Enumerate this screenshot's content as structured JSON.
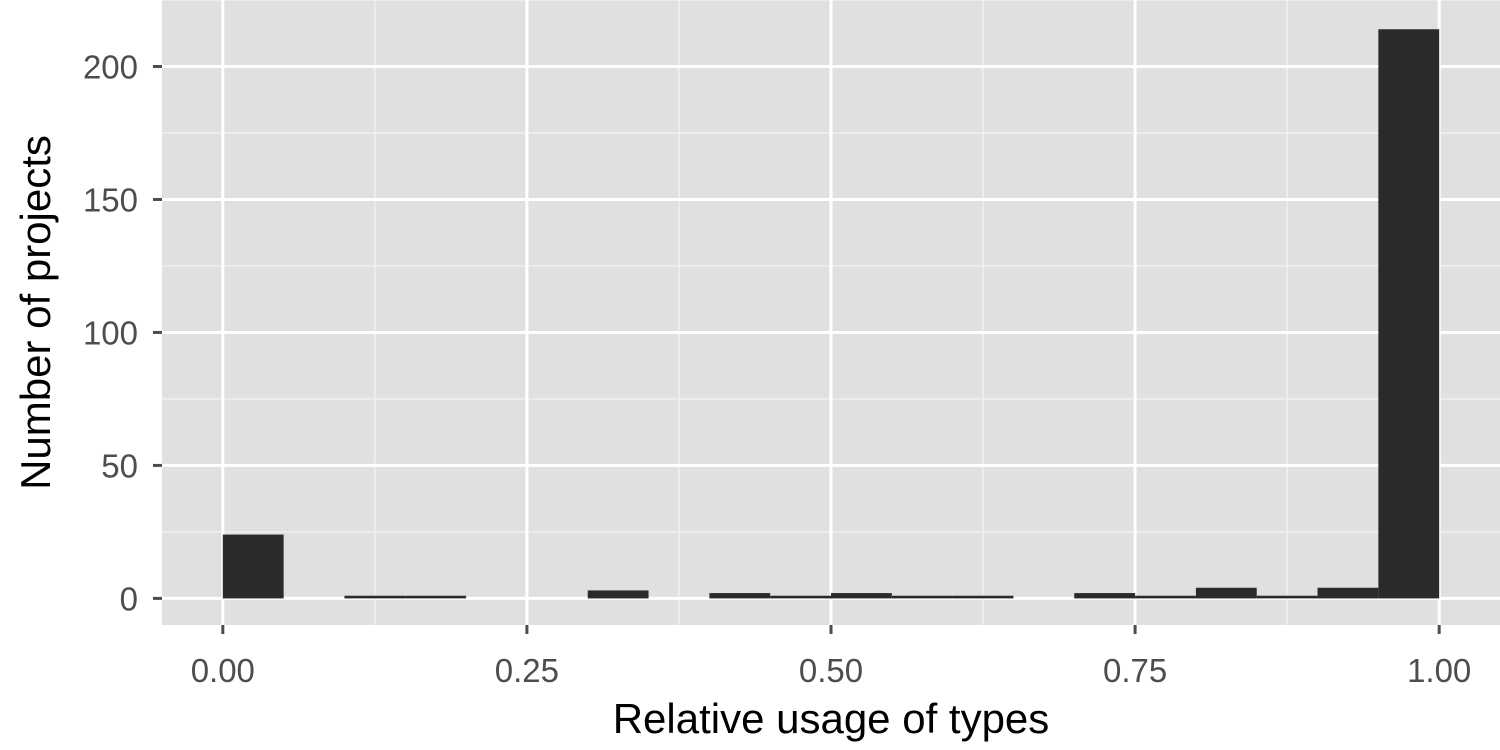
{
  "chart_data": {
    "type": "bar",
    "subtype": "histogram",
    "title": "",
    "xlabel": "Relative usage of types",
    "ylabel": "Number of projects",
    "bin_width": 0.05,
    "bins": [
      {
        "start": 0.0,
        "count": 24
      },
      {
        "start": 0.05,
        "count": 0
      },
      {
        "start": 0.1,
        "count": 1
      },
      {
        "start": 0.15,
        "count": 1
      },
      {
        "start": 0.2,
        "count": 0
      },
      {
        "start": 0.25,
        "count": 0
      },
      {
        "start": 0.3,
        "count": 3
      },
      {
        "start": 0.35,
        "count": 0
      },
      {
        "start": 0.4,
        "count": 2
      },
      {
        "start": 0.45,
        "count": 1
      },
      {
        "start": 0.5,
        "count": 2
      },
      {
        "start": 0.55,
        "count": 1
      },
      {
        "start": 0.6,
        "count": 1
      },
      {
        "start": 0.65,
        "count": 0
      },
      {
        "start": 0.7,
        "count": 2
      },
      {
        "start": 0.75,
        "count": 1
      },
      {
        "start": 0.8,
        "count": 4
      },
      {
        "start": 0.85,
        "count": 1
      },
      {
        "start": 0.9,
        "count": 4
      },
      {
        "start": 0.95,
        "count": 214
      }
    ],
    "xlim": [
      -0.05,
      1.05
    ],
    "ylim": [
      -10,
      225
    ],
    "x_ticks": [
      {
        "value": 0.0,
        "label": "0.00"
      },
      {
        "value": 0.25,
        "label": "0.25"
      },
      {
        "value": 0.5,
        "label": "0.50"
      },
      {
        "value": 0.75,
        "label": "0.75"
      },
      {
        "value": 1.0,
        "label": "1.00"
      }
    ],
    "y_ticks": [
      {
        "value": 0,
        "label": "0"
      },
      {
        "value": 50,
        "label": "50"
      },
      {
        "value": 100,
        "label": "100"
      },
      {
        "value": 150,
        "label": "150"
      },
      {
        "value": 200,
        "label": "200"
      }
    ],
    "grid": true,
    "legend": "none",
    "colors": {
      "panel_background": "#e0e0e0",
      "grid_major": "#ffffff",
      "grid_minor": "#f0f0f0",
      "bar_fill": "#2a2a2a",
      "tick_label": "#4d4d4d",
      "tick_mark": "#4d4d4d",
      "axis_title": "#000000"
    }
  }
}
